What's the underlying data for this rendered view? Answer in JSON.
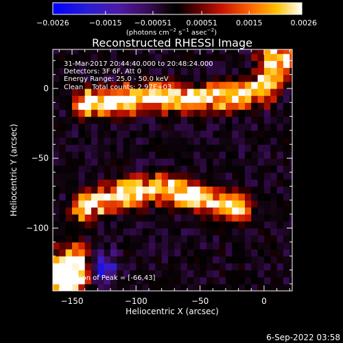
{
  "chart_data": {
    "type": "heatmap",
    "title": "Reconstructed RHESSI Image",
    "xlabel": "Heliocentric X (arcsec)",
    "ylabel": "Heliocentric Y (arcsec)",
    "xlim": [
      -165,
      22
    ],
    "ylim": [
      -145,
      28
    ],
    "x_ticks": [
      -150,
      -100,
      -50,
      0
    ],
    "x_tick_labels": [
      "−150",
      "−100",
      "−50",
      "0"
    ],
    "y_ticks": [
      0,
      -50,
      -100
    ],
    "y_tick_labels": [
      "0",
      "−50",
      "−100"
    ],
    "colorbar": {
      "range": [
        -0.0026,
        0.0026
      ],
      "ticks": [
        -0.0026,
        -0.0015,
        -0.00051,
        0.00051,
        0.0015,
        0.0026
      ],
      "tick_labels": [
        "−0.0026",
        "−0.0015",
        "−0.00051",
        "0.00051",
        "0.0015",
        "0.0026"
      ],
      "units_html": "(photons cm<sup>−2</sup> s<sup>−1</sup> asec<sup>−2</sup>)"
    },
    "annotations": [
      "31-Mar-2017 20:44:40.000 to 20:48:24.000",
      "Detectors: 3F 6F, Att 0",
      "Energy Range: 25.0 - 50.0 keV",
      "Clean    Total counts: 2.97E+03"
    ],
    "peak_label": "Position of Peak = [-66,43]",
    "bright_features": [
      {
        "type": "arc",
        "description_points": [
          [
            -140,
            -10
          ],
          [
            -110,
            -8
          ],
          [
            -80,
            -5
          ],
          [
            -50,
            -8
          ],
          [
            -20,
            -5
          ],
          [
            0,
            0
          ]
        ]
      },
      {
        "type": "arc",
        "description_points": [
          [
            -140,
            -85
          ],
          [
            -110,
            -75
          ],
          [
            -80,
            -72
          ],
          [
            -50,
            -78
          ],
          [
            -20,
            -85
          ]
        ]
      },
      {
        "type": "corner",
        "points": [
          [
            10,
            20
          ],
          [
            -155,
            -140
          ],
          [
            -150,
            -125
          ]
        ]
      }
    ]
  },
  "footer": {
    "date": "6-Sep-2022 03:58"
  }
}
